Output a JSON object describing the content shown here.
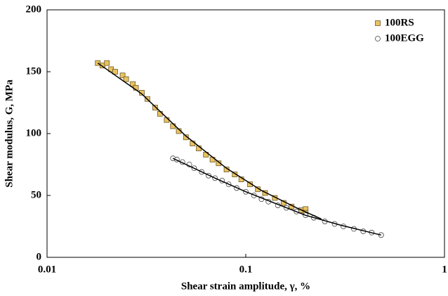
{
  "chart_data": {
    "type": "scatter",
    "x_label": "Shear strain amplitude, γ, %",
    "y_label": "Shear modulus, G, MPa",
    "xlim": [
      0.01,
      1
    ],
    "ylim": [
      0,
      200
    ],
    "xticks": [
      0.01,
      0.1,
      1
    ],
    "yticks": [
      0,
      50,
      100,
      150,
      200
    ],
    "xscale": "log",
    "legend": "upper right",
    "series": [
      {
        "name": "100RS",
        "color": "#e9c261",
        "marker": "square",
        "x": [
          0.018,
          0.019,
          0.02,
          0.021,
          0.022,
          0.024,
          0.025,
          0.027,
          0.028,
          0.03,
          0.032,
          0.035,
          0.037,
          0.04,
          0.043,
          0.046,
          0.05,
          0.054,
          0.058,
          0.063,
          0.068,
          0.073,
          0.08,
          0.088,
          0.095,
          0.105,
          0.115,
          0.125,
          0.14,
          0.155,
          0.17,
          0.19,
          0.2,
          0.2
        ],
        "values": [
          157,
          155,
          157,
          152,
          150,
          147,
          144,
          140,
          137,
          133,
          128,
          121,
          116,
          111,
          106,
          102,
          97,
          92,
          88,
          83,
          79,
          76,
          71,
          67,
          63,
          59,
          55,
          52,
          48,
          44,
          41,
          38,
          39,
          36
        ]
      },
      {
        "name": "100EGG",
        "color": "#ffffff",
        "marker": "circle",
        "x": [
          0.043,
          0.045,
          0.048,
          0.052,
          0.055,
          0.06,
          0.065,
          0.07,
          0.076,
          0.082,
          0.09,
          0.1,
          0.11,
          0.12,
          0.13,
          0.145,
          0.16,
          0.18,
          0.2,
          0.22,
          0.25,
          0.28,
          0.31,
          0.35,
          0.39,
          0.43,
          0.48
        ],
        "values": [
          80,
          79,
          77,
          75,
          72,
          69,
          66,
          64,
          62,
          59,
          56,
          53,
          50,
          47,
          45,
          42,
          40,
          37,
          34,
          32,
          29,
          27,
          25,
          23,
          21,
          20,
          18
        ]
      },
      {
        "color": "#000000",
        "marker": "line",
        "x": [
          0.018,
          0.03,
          0.05,
          0.08,
          0.12,
          0.18,
          0.24
        ],
        "values": [
          157,
          132,
          98,
          72,
          54,
          40,
          31
        ]
      },
      {
        "color": "#000000",
        "marker": "line",
        "x": [
          0.043,
          0.07,
          0.1,
          0.2,
          0.3,
          0.48
        ],
        "values": [
          80,
          64,
          53,
          34,
          26,
          18
        ]
      }
    ]
  }
}
